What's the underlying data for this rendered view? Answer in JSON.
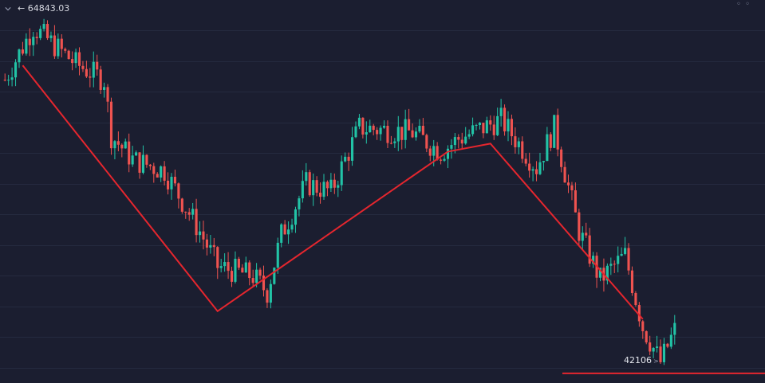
{
  "header": {
    "high_label": "64843.03"
  },
  "low_label": "42106",
  "colors": {
    "background": "#1b1e30",
    "grid": "#252a3f",
    "up": "#22c3a6",
    "down": "#ef5350",
    "trendline": "#e5262e"
  },
  "chart_data": {
    "type": "candlestick",
    "ylim": [
      41500,
      65500
    ],
    "price_levels": {
      "high": 64843.03,
      "low": 42106
    },
    "trend_lines": [
      {
        "points": [
          [
            5,
            61400
          ],
          [
            60,
            46000
          ],
          [
            125,
            56000
          ],
          [
            137,
            56500
          ],
          [
            180,
            45500
          ]
        ]
      }
    ],
    "support_line": {
      "price": 42106
    },
    "candle_count": 190
  }
}
